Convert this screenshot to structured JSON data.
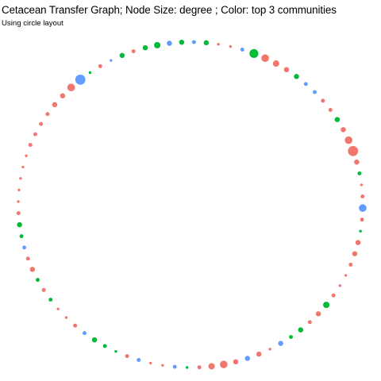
{
  "chart_data": {
    "type": "scatter",
    "title": "Cetacean Transfer Graph; Node Size: degree ; Color: top 3 communities",
    "subtitle": "Using circle layout",
    "xlabel": "",
    "ylabel": "",
    "grid": false,
    "legend": "none",
    "colors": {
      "A": "#F0766E",
      "B": "#00BA38",
      "C": "#619CFF"
    },
    "node_count": 88,
    "nodes": [
      {
        "community": "C",
        "degree": 2
      },
      {
        "community": "B",
        "degree": 3
      },
      {
        "community": "A",
        "degree": 1
      },
      {
        "community": "A",
        "degree": 1
      },
      {
        "community": "C",
        "degree": 2
      },
      {
        "community": "B",
        "degree": 6
      },
      {
        "community": "A",
        "degree": 5
      },
      {
        "community": "A",
        "degree": 4
      },
      {
        "community": "A",
        "degree": 3
      },
      {
        "community": "B",
        "degree": 3
      },
      {
        "community": "C",
        "degree": 2
      },
      {
        "community": "C",
        "degree": 2
      },
      {
        "community": "A",
        "degree": 2
      },
      {
        "community": "A",
        "degree": 2
      },
      {
        "community": "B",
        "degree": 3
      },
      {
        "community": "A",
        "degree": 3
      },
      {
        "community": "A",
        "degree": 5
      },
      {
        "community": "A",
        "degree": 7
      },
      {
        "community": "A",
        "degree": 3
      },
      {
        "community": "B",
        "degree": 2
      },
      {
        "community": "A",
        "degree": 1
      },
      {
        "community": "A",
        "degree": 2
      },
      {
        "community": "C",
        "degree": 5
      },
      {
        "community": "A",
        "degree": 2
      },
      {
        "community": "B",
        "degree": 1
      },
      {
        "community": "A",
        "degree": 3
      },
      {
        "community": "A",
        "degree": 3
      },
      {
        "community": "A",
        "degree": 2
      },
      {
        "community": "A",
        "degree": 1
      },
      {
        "community": "A",
        "degree": 1
      },
      {
        "community": "A",
        "degree": 2
      },
      {
        "community": "B",
        "degree": 4
      },
      {
        "community": "A",
        "degree": 3
      },
      {
        "community": "A",
        "degree": 2
      },
      {
        "community": "B",
        "degree": 3
      },
      {
        "community": "B",
        "degree": 2
      },
      {
        "community": "C",
        "degree": 3
      },
      {
        "community": "A",
        "degree": 1
      },
      {
        "community": "A",
        "degree": 3
      },
      {
        "community": "C",
        "degree": 3
      },
      {
        "community": "A",
        "degree": 3
      },
      {
        "community": "A",
        "degree": 5
      },
      {
        "community": "A",
        "degree": 4
      },
      {
        "community": "A",
        "degree": 2
      },
      {
        "community": "B",
        "degree": 1
      },
      {
        "community": "C",
        "degree": 2
      },
      {
        "community": "A",
        "degree": 1
      },
      {
        "community": "A",
        "degree": 1
      },
      {
        "community": "C",
        "degree": 2
      },
      {
        "community": "A",
        "degree": 2
      },
      {
        "community": "B",
        "degree": 1
      },
      {
        "community": "B",
        "degree": 2
      },
      {
        "community": "B",
        "degree": 3
      },
      {
        "community": "C",
        "degree": 2
      },
      {
        "community": "A",
        "degree": 2
      },
      {
        "community": "A",
        "degree": 1
      },
      {
        "community": "A",
        "degree": 1
      },
      {
        "community": "B",
        "degree": 2
      },
      {
        "community": "A",
        "degree": 2
      },
      {
        "community": "B",
        "degree": 2
      },
      {
        "community": "A",
        "degree": 3
      },
      {
        "community": "A",
        "degree": 2
      },
      {
        "community": "C",
        "degree": 2
      },
      {
        "community": "B",
        "degree": 2
      },
      {
        "community": "B",
        "degree": 3
      },
      {
        "community": "A",
        "degree": 2
      },
      {
        "community": "A",
        "degree": 1
      },
      {
        "community": "A",
        "degree": 1
      },
      {
        "community": "A",
        "degree": 1
      },
      {
        "community": "A",
        "degree": 1
      },
      {
        "community": "A",
        "degree": 1
      },
      {
        "community": "A",
        "degree": 2
      },
      {
        "community": "A",
        "degree": 2
      },
      {
        "community": "A",
        "degree": 2
      },
      {
        "community": "A",
        "degree": 2
      },
      {
        "community": "A",
        "degree": 3
      },
      {
        "community": "A",
        "degree": 3
      },
      {
        "community": "A",
        "degree": 5
      },
      {
        "community": "C",
        "degree": 7
      },
      {
        "community": "B",
        "degree": 1
      },
      {
        "community": "A",
        "degree": 2
      },
      {
        "community": "C",
        "degree": 1
      },
      {
        "community": "B",
        "degree": 3
      },
      {
        "community": "A",
        "degree": 2
      },
      {
        "community": "B",
        "degree": 3
      },
      {
        "community": "B",
        "degree": 4
      },
      {
        "community": "C",
        "degree": 3
      },
      {
        "community": "B",
        "degree": 3
      }
    ]
  }
}
